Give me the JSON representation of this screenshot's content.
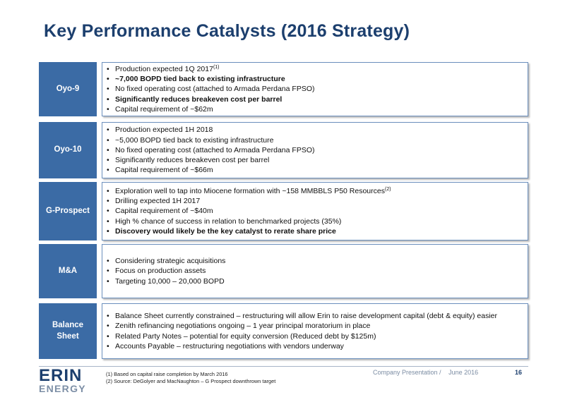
{
  "title": "Key Performance Catalysts (2016 Strategy)",
  "sections": [
    {
      "label": "Oyo-9",
      "bullets": [
        {
          "text": "Production expected 1Q 2017",
          "sup": "(1)",
          "bold": false
        },
        {
          "text": "~7,000 BOPD tied back to existing infrastructure",
          "bold": true
        },
        {
          "text": "No fixed operating cost (attached to Armada Perdana FPSO)",
          "bold": false
        },
        {
          "text": "Significantly reduces breakeven cost per barrel",
          "bold": true
        },
        {
          "text": "Capital requirement of ~$62m",
          "bold": false
        }
      ]
    },
    {
      "label": "Oyo-10",
      "bullets": [
        {
          "text": "Production expected 1H 2018",
          "bold": false
        },
        {
          "text": "~5,000 BOPD tied back to existing infrastructure",
          "bold": false
        },
        {
          "text": "No fixed operating cost (attached to Armada Perdana FPSO)",
          "bold": false
        },
        {
          "text": "Significantly reduces breakeven cost per barrel",
          "bold": false
        },
        {
          "text": "Capital requirement of ~$66m",
          "bold": false
        }
      ]
    },
    {
      "label": "G-Prospect",
      "bullets": [
        {
          "text": "Exploration well to tap into Miocene formation with ~158 MMBBLS P50 Resources",
          "sup": "(2)",
          "bold": false
        },
        {
          "text": "Drilling expected 1H 2017",
          "bold": false
        },
        {
          "text": "Capital requirement of ~$40m",
          "bold": false
        },
        {
          "text": "High % chance of success in relation to benchmarked projects (35%)",
          "bold": false
        },
        {
          "text": "Discovery would likely be the key catalyst to rerate share price",
          "bold": true
        }
      ]
    },
    {
      "label": "M&A",
      "bullets": [
        {
          "text": "Considering strategic acquisitions",
          "bold": false
        },
        {
          "text": "Focus on production assets",
          "bold": false
        },
        {
          "text": "Targeting 10,000 – 20,000 BOPD",
          "bold": false
        }
      ]
    },
    {
      "label_lines": [
        "Balance",
        "Sheet"
      ],
      "bullets": [
        {
          "text": "Balance Sheet currently constrained – restructuring will allow Erin to raise development capital (debt & equity) easier",
          "bold": false
        },
        {
          "text": "Zenith refinancing negotiations ongoing – 1 year principal moratorium in place",
          "bold": false
        },
        {
          "text": "Related Party Notes – potential for equity conversion (Reduced debt by $125m)",
          "bold": false
        },
        {
          "text": "Accounts Payable – restructuring negotiations with vendors underway",
          "bold": false
        }
      ]
    }
  ],
  "bullet_char": "•",
  "footer": {
    "logo_top": "ERIN",
    "logo_bottom": "ENERGY",
    "footnote_1": "(1) Based on capital raise completion by March 2016",
    "footnote_2": "(2) Source: DeGolyer and MacNaughton – G Prospect downthrown  target",
    "presentation": "Company Presentation /",
    "date": "June 2016",
    "page": "16"
  }
}
